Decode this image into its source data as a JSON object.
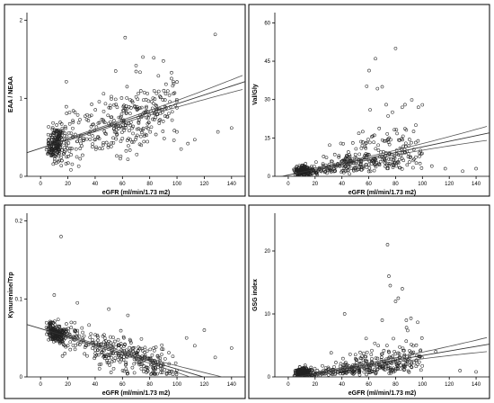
{
  "chart_data": [
    {
      "type": "scatter",
      "xlabel": "eGFR (ml/min/1.73 m2)",
      "ylabel": "EAA / NEAA",
      "xlim": [
        -10,
        150
      ],
      "ylim": [
        0,
        2.1
      ],
      "xticks": [
        0,
        20,
        40,
        60,
        80,
        100,
        120,
        140
      ],
      "yticks": [
        0,
        1,
        2
      ],
      "fit": {
        "slope": 0.0057,
        "intercept": 0.36
      },
      "gen": {
        "seed": 11,
        "n": 520,
        "nlow": 190,
        "lowmu": 11,
        "lowsd": 3.2,
        "xmax": 100,
        "sd": 0.2,
        "skew": false,
        "minY": 0.05
      },
      "outliers": [
        [
          62,
          1.78
        ],
        [
          128,
          1.82
        ],
        [
          130,
          0.57
        ],
        [
          140,
          0.62
        ],
        [
          103,
          0.35
        ],
        [
          108,
          0.42
        ],
        [
          113,
          0.47
        ],
        [
          75,
          1.53
        ],
        [
          90,
          1.48
        ],
        [
          96,
          1.33
        ],
        [
          70,
          1.42
        ],
        [
          100,
          1.21
        ],
        [
          55,
          1.35
        ],
        [
          83,
          1.52
        ]
      ]
    },
    {
      "type": "scatter",
      "xlabel": "eGFR (ml/min/1.73 m2)",
      "ylabel": "Val/Gly",
      "xlim": [
        -10,
        150
      ],
      "ylim": [
        0,
        64
      ],
      "xticks": [
        0,
        20,
        40,
        60,
        80,
        100,
        120,
        140
      ],
      "yticks": [
        0,
        15,
        30,
        45,
        60
      ],
      "fit": {
        "slope": 0.11,
        "intercept": 0.5
      },
      "gen": {
        "seed": 23,
        "n": 520,
        "nlow": 190,
        "lowmu": 11,
        "lowsd": 3.2,
        "xmax": 100,
        "sd": 4.5,
        "skew": true,
        "minY": 0.2
      },
      "outliers": [
        [
          65,
          46
        ],
        [
          80,
          50
        ],
        [
          70,
          35
        ],
        [
          130,
          2
        ],
        [
          140,
          3
        ],
        [
          107,
          4
        ],
        [
          117,
          3
        ],
        [
          97,
          27
        ],
        [
          73,
          28
        ],
        [
          61,
          26
        ],
        [
          87,
          28
        ]
      ]
    },
    {
      "type": "scatter",
      "xlabel": "eGFR (ml/min/1.73 m2)",
      "ylabel": "Kynurenine/Trp",
      "xlim": [
        -10,
        150
      ],
      "ylim": [
        0,
        0.21
      ],
      "xticks": [
        0,
        20,
        40,
        60,
        80,
        100,
        120,
        140
      ],
      "yticks": [
        0,
        0.1,
        0.2
      ],
      "fit": {
        "slope": -0.00052,
        "intercept": 0.062
      },
      "gen": {
        "seed": 37,
        "n": 520,
        "nlow": 190,
        "lowmu": 11,
        "lowsd": 3.2,
        "xmax": 100,
        "sd": 0.011,
        "skew": false,
        "minY": 0.003
      },
      "outliers": [
        [
          15,
          0.18
        ],
        [
          10,
          0.105
        ],
        [
          27,
          0.095
        ],
        [
          64,
          0.079
        ],
        [
          50,
          0.087
        ],
        [
          128,
          0.025
        ],
        [
          140,
          0.037
        ],
        [
          113,
          0.04
        ],
        [
          107,
          0.05
        ],
        [
          120,
          0.06
        ]
      ]
    },
    {
      "type": "scatter",
      "xlabel": "eGFR (ml/min/1.73 m2)",
      "ylabel": "GSG index",
      "xlim": [
        -10,
        150
      ],
      "ylim": [
        0,
        26
      ],
      "xticks": [
        0,
        20,
        40,
        60,
        80,
        100,
        120,
        140
      ],
      "yticks": [
        0,
        10,
        20
      ],
      "fit": {
        "slope": 0.036,
        "intercept": -0.2
      },
      "gen": {
        "seed": 53,
        "n": 520,
        "nlow": 190,
        "lowmu": 11,
        "lowsd": 3.2,
        "xmax": 100,
        "sd": 1.8,
        "skew": true,
        "minY": 0.05
      },
      "outliers": [
        [
          74,
          21
        ],
        [
          75,
          16
        ],
        [
          76,
          14.5
        ],
        [
          82,
          12.5
        ],
        [
          85,
          14
        ],
        [
          80,
          12
        ],
        [
          42,
          10
        ],
        [
          128,
          1
        ],
        [
          140,
          0.8
        ],
        [
          110,
          4
        ],
        [
          88,
          9
        ],
        [
          70,
          9
        ]
      ]
    }
  ]
}
